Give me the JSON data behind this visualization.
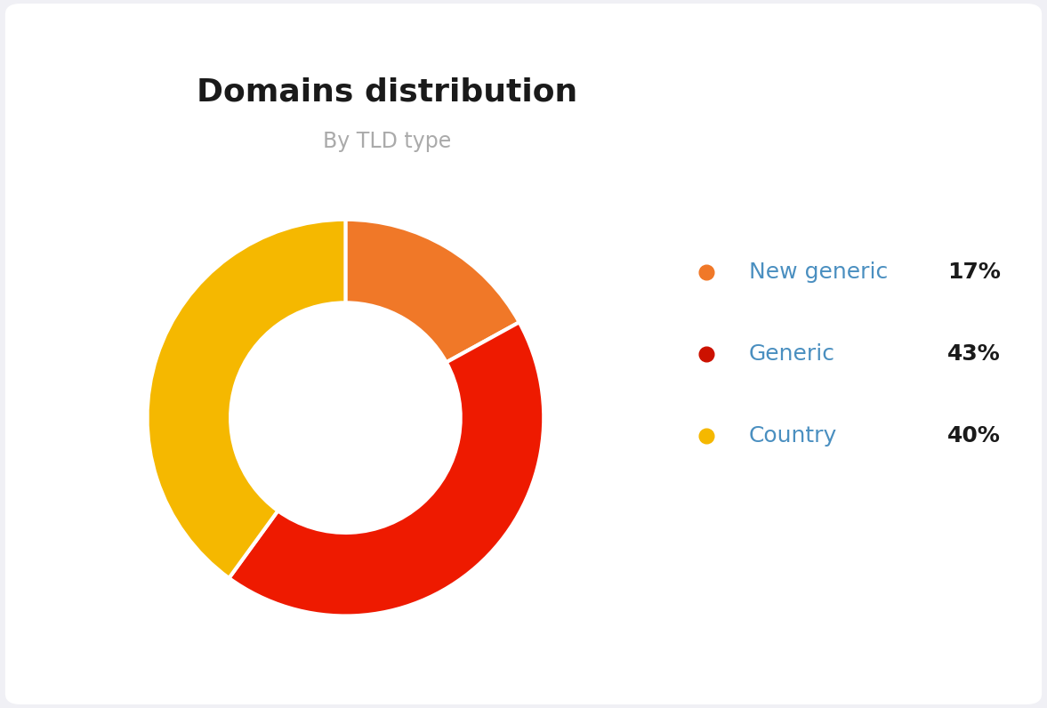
{
  "title": "Domains distribution",
  "subtitle": "By TLD type",
  "title_color": "#1a1a1a",
  "subtitle_color": "#aaaaaa",
  "background_color": "#f0f0f5",
  "card_color": "#ffffff",
  "slices": [
    17,
    43,
    40
  ],
  "labels": [
    "New generic",
    "Generic",
    "Country"
  ],
  "percentages": [
    "17%",
    "43%",
    "40%"
  ],
  "colors": [
    "#f07828",
    "#ee1a00",
    "#f5b800"
  ],
  "legend_dot_colors": [
    "#f07828",
    "#cc1100",
    "#f5b800"
  ],
  "legend_label_color": "#4a8fc0",
  "legend_pct_color": "#1a1a1a",
  "start_angle": 90,
  "donut_width": 0.42
}
